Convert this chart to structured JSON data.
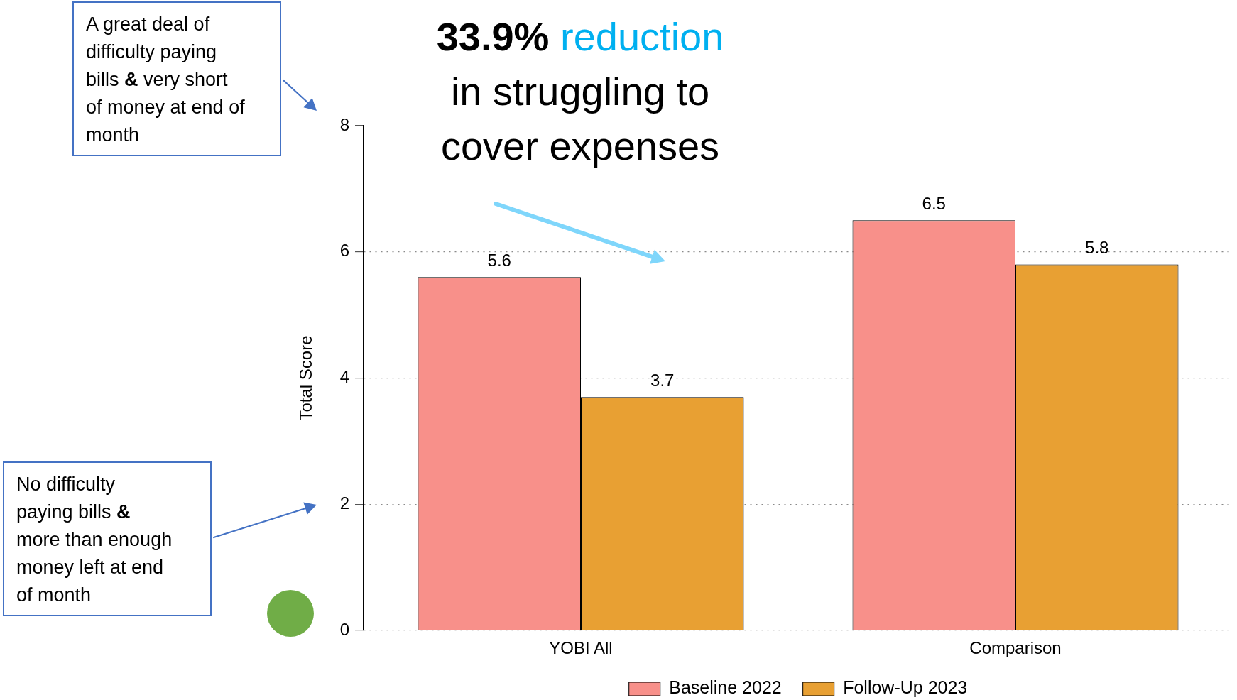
{
  "chart_data": {
    "type": "bar",
    "title": "33.9% reduction in struggling to cover expenses",
    "ylabel": "Total Score",
    "categories": [
      "YOBI All",
      "Comparison"
    ],
    "series": [
      {
        "name": "Baseline 2022",
        "color": "#f8908a",
        "values": [
          5.6,
          6.5
        ]
      },
      {
        "name": "Follow-Up 2023",
        "color": "#e8a033",
        "values": [
          3.7,
          5.8
        ]
      }
    ],
    "ylim": [
      0,
      8
    ],
    "yticks": [
      0,
      2,
      4,
      6,
      8
    ],
    "grid": "y",
    "legend": "bottom",
    "data_labels": true,
    "annotations": [
      "A great deal of difficulty paying bills & very short of money at end of month",
      "No difficulty paying bills & more than enough money left at end of month"
    ]
  }
}
